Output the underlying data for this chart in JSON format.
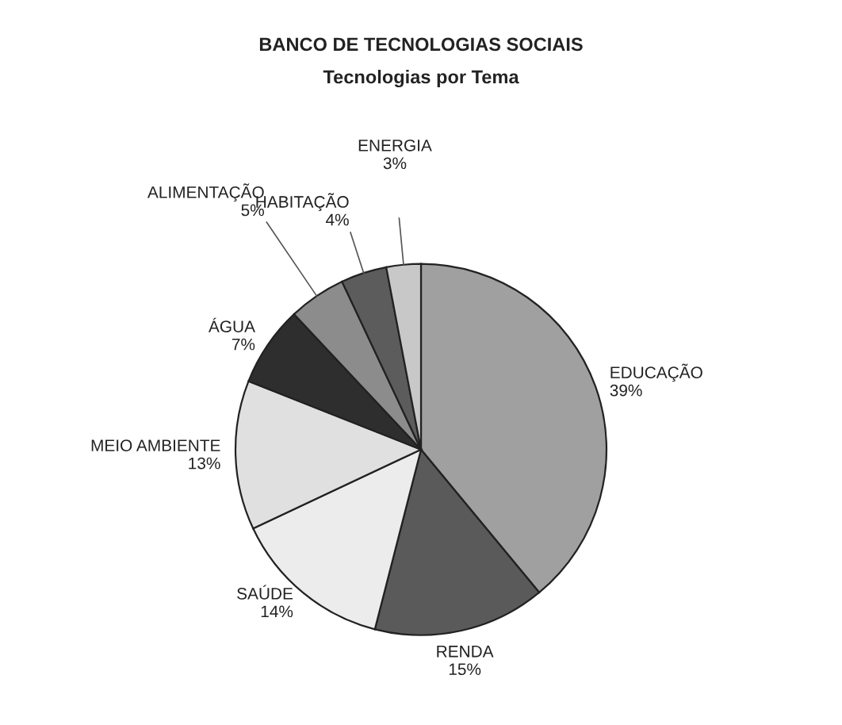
{
  "chart_data": {
    "type": "pie",
    "title": "BANCO DE TECNOLOGIAS SOCIAIS",
    "subtitle": "Tecnologias por Tema",
    "categories": [
      "EDUCAÇÃO",
      "RENDA",
      "SAÚDE",
      "MEIO AMBIENTE",
      "ÁGUA",
      "ALIMENTAÇÃO",
      "HABITAÇÃO",
      "ENERGIA"
    ],
    "values": [
      39,
      15,
      14,
      13,
      7,
      5,
      4,
      3
    ],
    "value_labels": [
      "39%",
      "15%",
      "14%",
      "13%",
      "7%",
      "5%",
      "4%",
      "3%"
    ],
    "colors": [
      "#a0a0a0",
      "#5a5a5a",
      "#ececec",
      "#e0e0e0",
      "#2e2e2e",
      "#8c8c8c",
      "#5c5c5c",
      "#c8c8c8"
    ],
    "legend": false
  }
}
